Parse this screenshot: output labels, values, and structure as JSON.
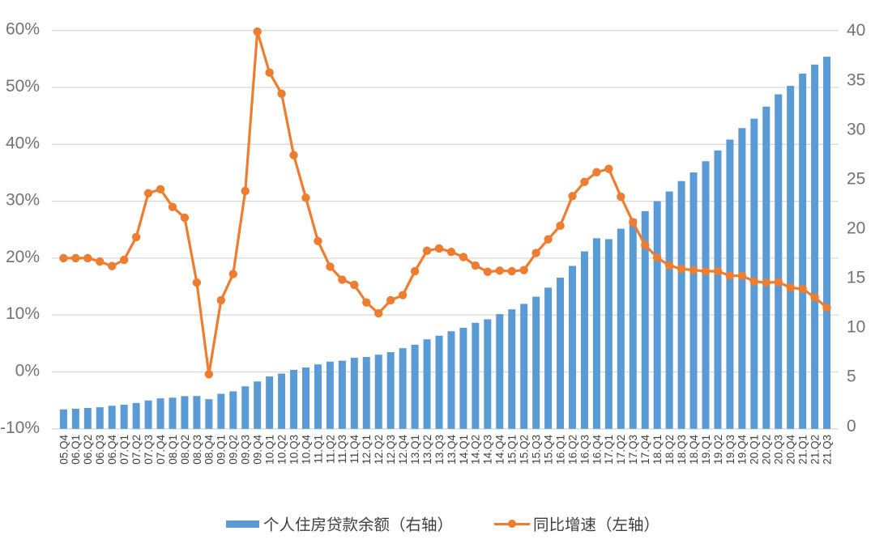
{
  "page": {
    "background": "#FFFFFF"
  },
  "chart_data": {
    "type": "bar",
    "subtype": "combo bar+line, dual axis",
    "categories": [
      "05.Q4",
      "06.Q1",
      "06.Q2",
      "06.Q3",
      "06.Q4",
      "07.Q1",
      "07.Q2",
      "07.Q3",
      "07.Q4",
      "08.Q1",
      "08.Q2",
      "08.Q3",
      "08.Q4",
      "09.Q1",
      "09.Q2",
      "09.Q3",
      "09.Q4",
      "10.Q1",
      "10.Q2",
      "10.Q3",
      "10.Q4",
      "11.Q1",
      "11.Q2",
      "11.Q3",
      "11.Q4",
      "12.Q1",
      "12.Q2",
      "12.Q3",
      "12.Q4",
      "13.Q1",
      "13.Q2",
      "13.Q3",
      "13.Q4",
      "14.Q1",
      "14.Q2",
      "14.Q3",
      "14.Q4",
      "15.Q1",
      "15.Q2",
      "15.Q3",
      "15.Q4",
      "16.Q1",
      "16.Q2",
      "16.Q3",
      "16.Q4",
      "17.Q1",
      "17.Q2",
      "17.Q3",
      "17.Q4",
      "18.Q1",
      "18.Q2",
      "18.Q3",
      "18.Q4",
      "19.Q1",
      "19.Q2",
      "19.Q3",
      "19.Q4",
      "20.Q1",
      "20.Q2",
      "20.Q3",
      "20.Q4",
      "21.Q1",
      "21.Q2",
      "21.Q3"
    ],
    "series": [
      {
        "name": "个人住房贷款余额（右轴）",
        "type": "bar",
        "axis": "right",
        "color": "#5B9BD5",
        "values": [
          1.96,
          2.02,
          2.1,
          2.17,
          2.32,
          2.42,
          2.6,
          2.85,
          3.06,
          3.13,
          3.29,
          3.3,
          2.98,
          3.52,
          3.77,
          4.27,
          4.76,
          5.26,
          5.55,
          5.93,
          6.16,
          6.47,
          6.75,
          6.84,
          7.14,
          7.22,
          7.45,
          7.7,
          8.1,
          8.45,
          8.99,
          9.35,
          9.8,
          10.15,
          10.65,
          11.0,
          11.52,
          12.0,
          12.55,
          13.27,
          14.18,
          15.18,
          16.36,
          17.82,
          19.14,
          19.05,
          20.1,
          21.1,
          21.86,
          22.86,
          23.84,
          24.88,
          25.75,
          26.87,
          27.96,
          29.05,
          30.2,
          31.15,
          32.36,
          33.59,
          34.44,
          35.67,
          36.58,
          37.37
        ]
      },
      {
        "name": "同比增速（左轴）",
        "type": "line",
        "axis": "left",
        "color": "#ED7D31",
        "values": [
          20.0,
          20.0,
          20.0,
          19.4,
          18.6,
          19.7,
          23.7,
          31.4,
          32.1,
          29.0,
          27.1,
          15.7,
          -0.4,
          12.6,
          17.2,
          31.8,
          59.8,
          52.6,
          48.9,
          38.1,
          30.6,
          23.0,
          18.5,
          16.2,
          15.3,
          12.2,
          10.3,
          12.6,
          13.5,
          17.7,
          21.3,
          21.7,
          21.1,
          20.2,
          18.7,
          17.6,
          17.8,
          17.7,
          17.9,
          20.9,
          23.3,
          25.7,
          30.9,
          33.4,
          35.1,
          35.7,
          30.8,
          26.3,
          22.3,
          20.1,
          18.7,
          18.1,
          17.9,
          17.7,
          17.7,
          16.9,
          16.9,
          15.9,
          15.7,
          15.8,
          14.8,
          14.6,
          13.1,
          11.3
        ]
      }
    ],
    "left_axis": {
      "min": -10,
      "max": 60,
      "tick_step": 10,
      "unit": "%",
      "tick_labels": [
        "60%",
        "50%",
        "40%",
        "30%",
        "20%",
        "10%",
        "0%",
        "-10%"
      ]
    },
    "right_axis": {
      "min": 0,
      "max": 40,
      "tick_step": 5,
      "tick_labels": [
        "40",
        "35",
        "30",
        "25",
        "20",
        "15",
        "10",
        "5",
        "0"
      ]
    },
    "title": "",
    "xlabel": "",
    "ylabel": "",
    "grid": true,
    "legend_position": "bottom",
    "colors": {
      "bar": "#5B9BD5",
      "line": "#ED7D31",
      "gridline": "#D9D9D9",
      "axis_tick_label": "#737373",
      "category_label": "#404040",
      "legend_text": "#3F3F3F"
    }
  }
}
